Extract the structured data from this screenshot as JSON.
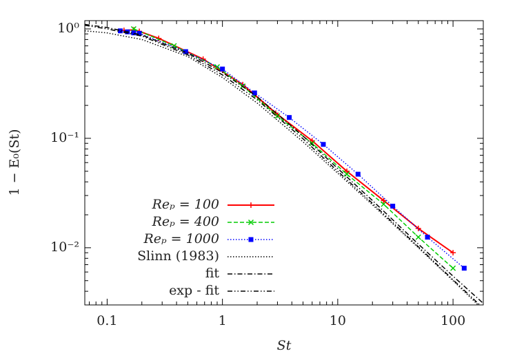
{
  "chart_data": {
    "type": "line",
    "x_label": "St",
    "y_label": "1 − E₀(St)",
    "xscale": "log",
    "yscale": "log",
    "xlim": [
      0.064,
      183
    ],
    "ylim": [
      0.003,
      1.19
    ],
    "xticks": [
      0.1,
      1,
      10,
      100
    ],
    "yticks": [
      {
        "value": 1,
        "label": "10⁰"
      },
      {
        "value": 0.1,
        "label": "10⁻¹"
      },
      {
        "value": 0.01,
        "label": "10⁻²"
      }
    ],
    "legend": "lower left",
    "series": [
      {
        "name": "Reₚ = 100",
        "color": "#ff0000",
        "dash": "solid",
        "marker": "plus",
        "x": [
          0.14,
          0.17,
          0.19,
          0.28,
          0.68,
          1.5,
          2.9,
          6,
          12,
          25,
          50,
          100
        ],
        "values": [
          0.97,
          0.98,
          0.95,
          0.82,
          0.53,
          0.31,
          0.17,
          0.095,
          0.05,
          0.027,
          0.015,
          0.009
        ]
      },
      {
        "name": "Reₚ = 400",
        "color": "#00cc00",
        "dash": "dashed",
        "marker": "cross",
        "x": [
          0.17,
          0.38,
          0.9,
          1.5,
          3,
          6,
          12,
          25,
          50,
          100
        ],
        "values": [
          1.0,
          0.7,
          0.45,
          0.3,
          0.16,
          0.09,
          0.047,
          0.025,
          0.0125,
          0.0065
        ]
      },
      {
        "name": "Reₚ = 1000",
        "color": "#0000ff",
        "dash": "dotted",
        "marker": "square",
        "x": [
          0.13,
          0.15,
          0.17,
          0.19,
          0.48,
          1.0,
          1.9,
          3.8,
          7.5,
          15,
          30,
          60,
          125
        ],
        "values": [
          0.96,
          0.94,
          0.92,
          0.91,
          0.62,
          0.43,
          0.26,
          0.155,
          0.088,
          0.047,
          0.024,
          0.0125,
          0.0065
        ]
      },
      {
        "name": "Slinn (1983)",
        "color": "#000000",
        "dash": "dotted",
        "marker": "none",
        "x": [
          0.064,
          0.1,
          0.2,
          0.5,
          1,
          2,
          5,
          10,
          20,
          50,
          100,
          183
        ],
        "values": [
          0.96,
          0.92,
          0.8,
          0.56,
          0.36,
          0.21,
          0.093,
          0.048,
          0.0247,
          0.01,
          0.005,
          0.0027
        ]
      },
      {
        "name": "fit",
        "color": "#000000",
        "dash": "dashdot",
        "marker": "none",
        "x": [
          0.064,
          0.1,
          0.2,
          0.5,
          1,
          2,
          5,
          10,
          20,
          50,
          100,
          183
        ],
        "values": [
          1.1,
          1.03,
          0.88,
          0.6,
          0.4,
          0.24,
          0.105,
          0.053,
          0.027,
          0.0108,
          0.0055,
          0.0031
        ]
      },
      {
        "name": "exp - fit",
        "color": "#000000",
        "dash": "dashdotdot",
        "marker": "none",
        "x": [
          0.064,
          0.1,
          0.2,
          0.5,
          1,
          2,
          5,
          10,
          20,
          50,
          100,
          183
        ],
        "values": [
          1.08,
          1.0,
          0.86,
          0.58,
          0.38,
          0.225,
          0.099,
          0.05,
          0.0255,
          0.0102,
          0.0051,
          0.0028
        ]
      }
    ]
  }
}
